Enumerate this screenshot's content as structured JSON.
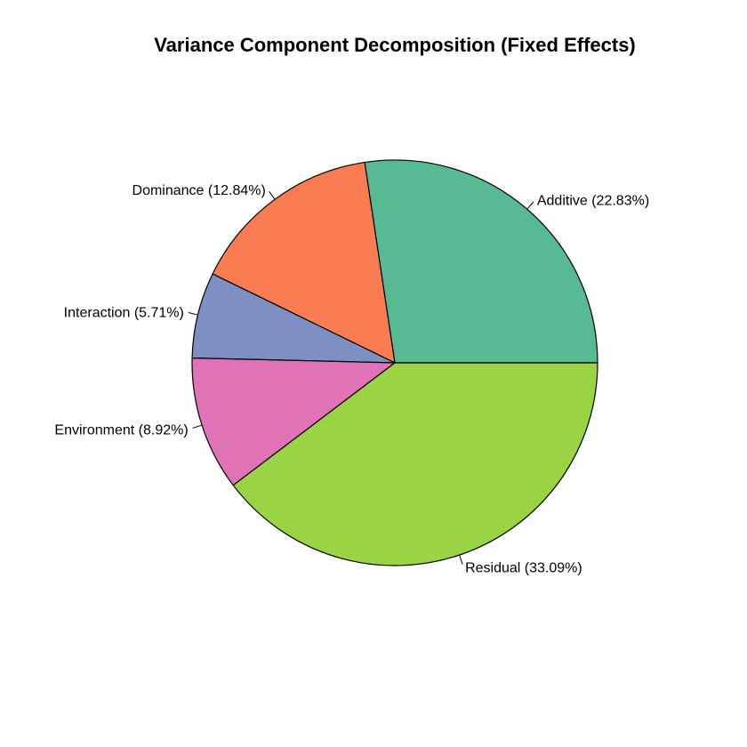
{
  "chart_data": {
    "type": "pie",
    "title": "Variance Component Decomposition (Fixed Effects)",
    "start_angle_deg": 0,
    "direction": "counterclockwise",
    "slices": [
      {
        "name": "Additive",
        "value": 22.83,
        "label": "Additive (22.83%)",
        "color": "#57BA93"
      },
      {
        "name": "Dominance",
        "value": 12.84,
        "label": "Dominance (12.84%)",
        "color": "#F97C53"
      },
      {
        "name": "Interaction",
        "value": 5.71,
        "label": "Interaction (5.71%)",
        "color": "#7E90C1"
      },
      {
        "name": "Environment",
        "value": 8.92,
        "label": "Environment (8.92%)",
        "color": "#E073B6"
      },
      {
        "name": "Residual",
        "value": 33.09,
        "label": "Residual (33.09%)",
        "color": "#9AD445"
      }
    ]
  }
}
